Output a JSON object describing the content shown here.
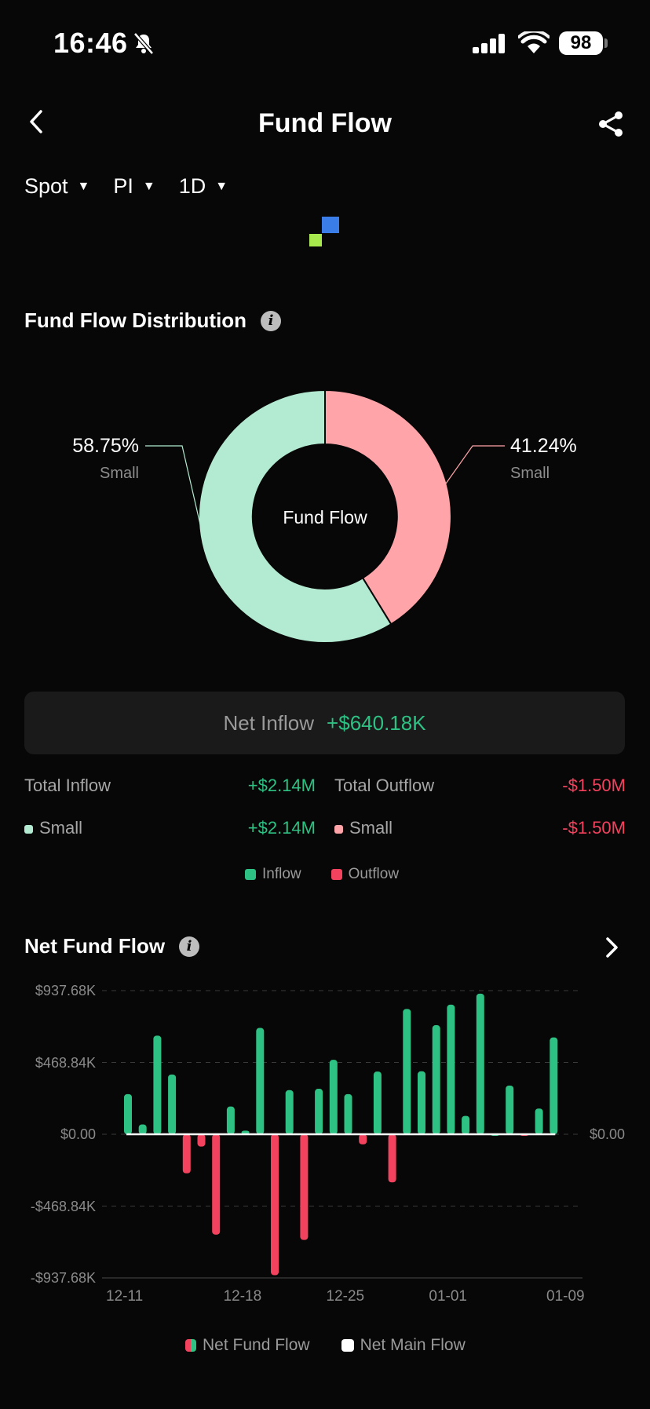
{
  "status": {
    "time": "16:46",
    "battery": "98"
  },
  "header": {
    "title": "Fund Flow"
  },
  "filters": [
    {
      "label": "Spot"
    },
    {
      "label": "PI"
    },
    {
      "label": "1D"
    }
  ],
  "distribution": {
    "title": "Fund Flow Distribution",
    "center_label": "Fund Flow",
    "left": {
      "pct": "58.75%",
      "name": "Small"
    },
    "right": {
      "pct": "41.24%",
      "name": "Small"
    },
    "colors": {
      "inflow": "#b3ebd2",
      "outflow": "#ffa5aa"
    }
  },
  "net": {
    "label": "Net Inflow",
    "value": "+$640.18K"
  },
  "totals": {
    "inflow_label": "Total Inflow",
    "inflow_value": "+$2.14M",
    "outflow_label": "Total Outflow",
    "outflow_value": "-$1.50M",
    "small_in_label": "Small",
    "small_in_value": "+$2.14M",
    "small_out_label": "Small",
    "small_out_value": "-$1.50M"
  },
  "legend_top": {
    "inflow": "Inflow",
    "outflow": "Outflow"
  },
  "net_fund_flow": {
    "title": "Net Fund Flow"
  },
  "legend_bottom": {
    "a": "Net Fund Flow",
    "b": "Net Main Flow"
  },
  "chart_data": {
    "type": "bar",
    "title": "Net Fund Flow",
    "y_ticks": [
      "$937.68K",
      "$468.84K",
      "$0.00",
      "-$468.84K",
      "-$937.68K"
    ],
    "y_right_tick": "$0.00",
    "ylim": [
      -937.68,
      937.68
    ],
    "x_ticks": [
      {
        "label": "12-11",
        "index": 0
      },
      {
        "label": "12-18",
        "index": 8
      },
      {
        "label": "12-25",
        "index": 15
      },
      {
        "label": "01-01",
        "index": 22
      },
      {
        "label": "01-09",
        "index": 30
      }
    ],
    "colors": {
      "positive": "#2dc183",
      "negative": "#f2425e"
    },
    "series": [
      {
        "name": "Net Fund Flow",
        "unit": "K",
        "values": [
          262,
          64,
          644,
          390,
          -255,
          -80,
          -655,
          181,
          24,
          694,
          -920,
          288,
          -690,
          297,
          486,
          262,
          -66,
          409,
          -314,
          818,
          411,
          712,
          846,
          120,
          918,
          0,
          318,
          -8,
          168,
          632
        ]
      }
    ]
  }
}
